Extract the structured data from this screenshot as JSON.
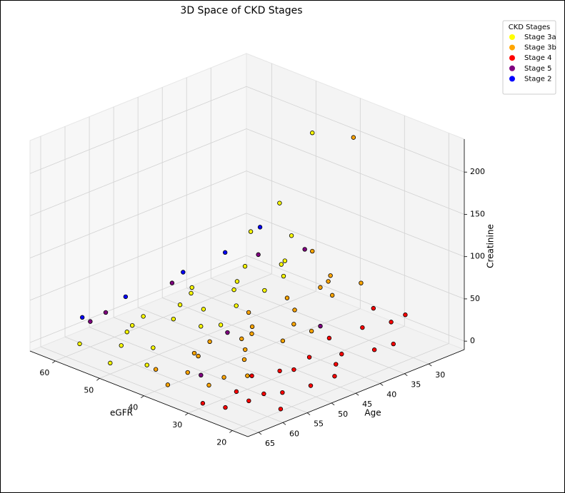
{
  "chart_data": {
    "type": "scatter3d",
    "title": "3D Space of CKD Stages",
    "xlabel": "eGFR",
    "ylabel": "Age",
    "zlabel": "Creatinine",
    "xlim": [
      16.5,
      65.7
    ],
    "ylim": [
      22.7,
      67.2
    ],
    "zlim": [
      -10,
      239
    ],
    "xticks": [
      20,
      30,
      40,
      50,
      60
    ],
    "yticks": [
      30,
      35,
      40,
      45,
      50,
      55,
      60,
      65
    ],
    "zticks": [
      0,
      50,
      100,
      150,
      200
    ],
    "grid": true,
    "legend_title": "CKD Stages",
    "legend": "upper right",
    "series": [
      {
        "name": "Stage 3a",
        "color": "#ffff00",
        "x": [
          58,
          55,
          52,
          49,
          47,
          59,
          56,
          53,
          50,
          46,
          57,
          54,
          48,
          51,
          45,
          60,
          58,
          52,
          47,
          55,
          49,
          53,
          46,
          59,
          50,
          45,
          48
        ],
        "y": [
          30,
          35,
          28,
          40,
          45,
          50,
          55,
          60,
          52,
          33,
          42,
          47,
          58,
          38,
          62,
          27,
          64,
          44,
          36,
          57,
          30,
          25,
          50,
          40,
          65,
          28,
          32
        ],
        "z": [
          20,
          10,
          30,
          15,
          8,
          5,
          12,
          6,
          25,
          40,
          18,
          22,
          9,
          35,
          4,
          50,
          7,
          14,
          28,
          11,
          45,
          55,
          20,
          16,
          3,
          200,
          120
        ]
      },
      {
        "name": "Stage 3b",
        "color": "#ffa500",
        "x": [
          44,
          42,
          40,
          38,
          36,
          34,
          32,
          43,
          41,
          39,
          37,
          35,
          33,
          31,
          44,
          42,
          40,
          38,
          36,
          34,
          32,
          30,
          43,
          41,
          39,
          45,
          37
        ],
        "y": [
          50,
          55,
          45,
          60,
          40,
          52,
          58,
          35,
          30,
          48,
          65,
          33,
          45,
          62,
          42,
          27,
          56,
          38,
          50,
          28,
          40,
          55,
          62,
          44,
          25,
          28,
          32
        ],
        "z": [
          6,
          8,
          12,
          5,
          20,
          10,
          7,
          25,
          30,
          15,
          4,
          40,
          18,
          9,
          22,
          35,
          11,
          28,
          13,
          45,
          20,
          6,
          3,
          16,
          200,
          60,
          50
        ]
      },
      {
        "name": "Stage 4",
        "color": "#ff0000",
        "x": [
          29,
          27,
          25,
          23,
          21,
          19,
          28,
          26,
          24,
          22,
          20,
          18,
          29,
          27,
          25,
          23,
          21,
          19,
          17,
          28,
          26,
          24
        ],
        "y": [
          55,
          60,
          50,
          58,
          45,
          52,
          40,
          35,
          65,
          62,
          38,
          48,
          30,
          45,
          30,
          42,
          56,
          35,
          60,
          66,
          52,
          28
        ],
        "z": [
          8,
          5,
          12,
          6,
          15,
          10,
          20,
          25,
          4,
          9,
          18,
          14,
          30,
          11,
          22,
          16,
          7,
          20,
          5,
          3,
          13,
          28
        ]
      },
      {
        "name": "Stage 5",
        "color": "#800080",
        "x": [
          62,
          60,
          55,
          40,
          30,
          58,
          35,
          50
        ],
        "y": [
          55,
          60,
          30,
          50,
          40,
          45,
          60,
          25
        ],
        "z": [
          15,
          20,
          40,
          25,
          30,
          35,
          8,
          45
        ]
      },
      {
        "name": "Stage 2",
        "color": "#0000ff",
        "x": [
          63,
          61,
          57,
          64,
          59
        ],
        "y": [
          50,
          40,
          35,
          58,
          26
        ],
        "z": [
          20,
          30,
          50,
          12,
          55
        ]
      }
    ]
  }
}
